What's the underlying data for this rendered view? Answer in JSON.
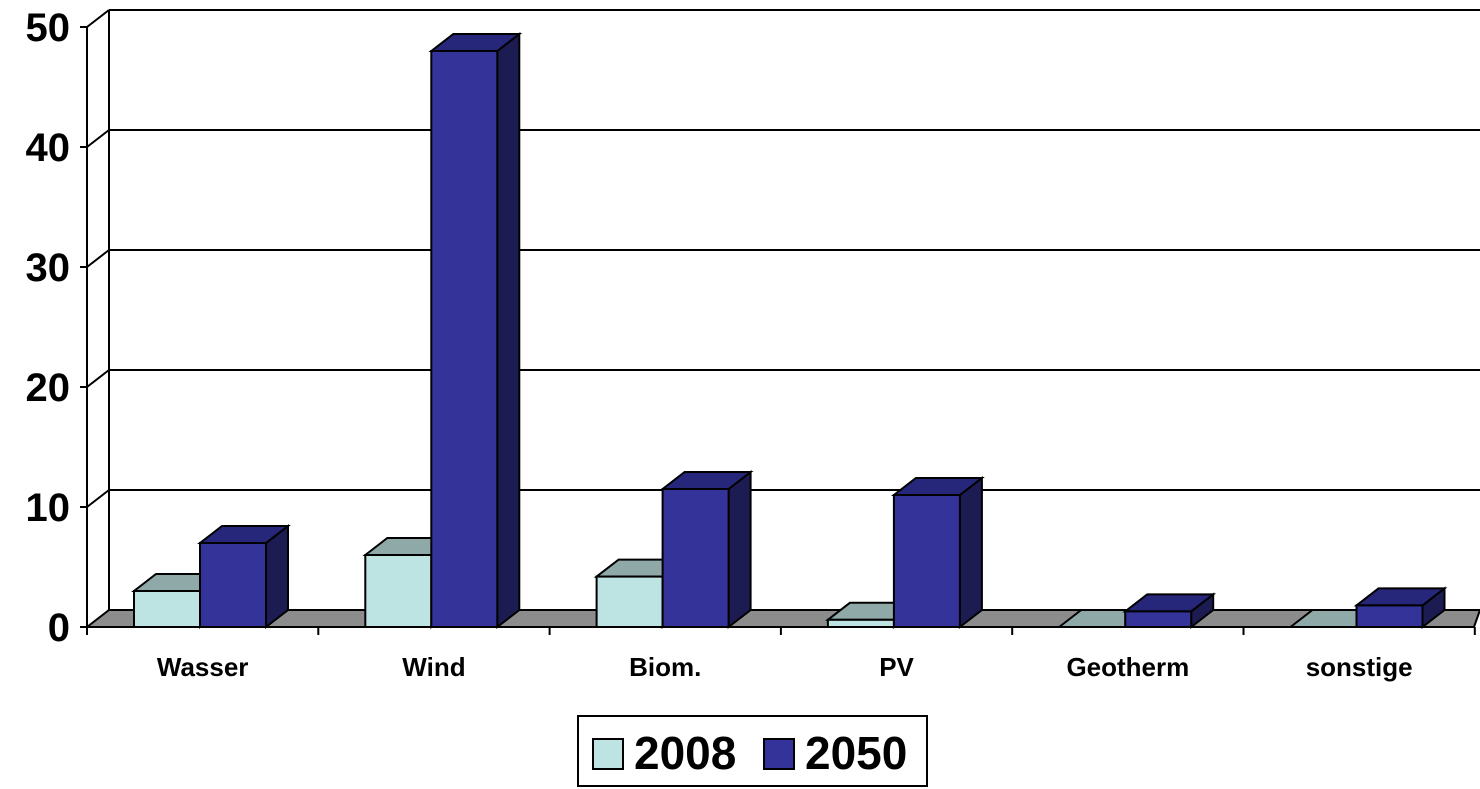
{
  "chart_data": {
    "type": "bar",
    "title": "",
    "xlabel": "",
    "ylabel": "",
    "categories": [
      "Wasser",
      "Wind",
      "Biom.",
      "PV",
      "Geotherm",
      "sonstige"
    ],
    "series": [
      {
        "name": "2008",
        "values": [
          3,
          6,
          4.2,
          0.6,
          0,
          0
        ]
      },
      {
        "name": "2050",
        "values": [
          7,
          48,
          11.5,
          11,
          1.3,
          1.8
        ]
      }
    ],
    "ylim": [
      0,
      50
    ],
    "yticks": [
      "0",
      "10",
      "20",
      "30",
      "40",
      "50"
    ],
    "grid": true,
    "three_d": true,
    "legend_position": "bottom-center",
    "colors": {
      "series_2008_front": "#bde3e3",
      "series_2008_top": "#8fa8a8",
      "series_2008_side": "#6f8c8c",
      "series_2050_front": "#333399",
      "series_2050_top": "#26267a",
      "series_2050_side": "#1c1c52",
      "floor": "#8c8c8c",
      "grid": "#000000"
    }
  }
}
